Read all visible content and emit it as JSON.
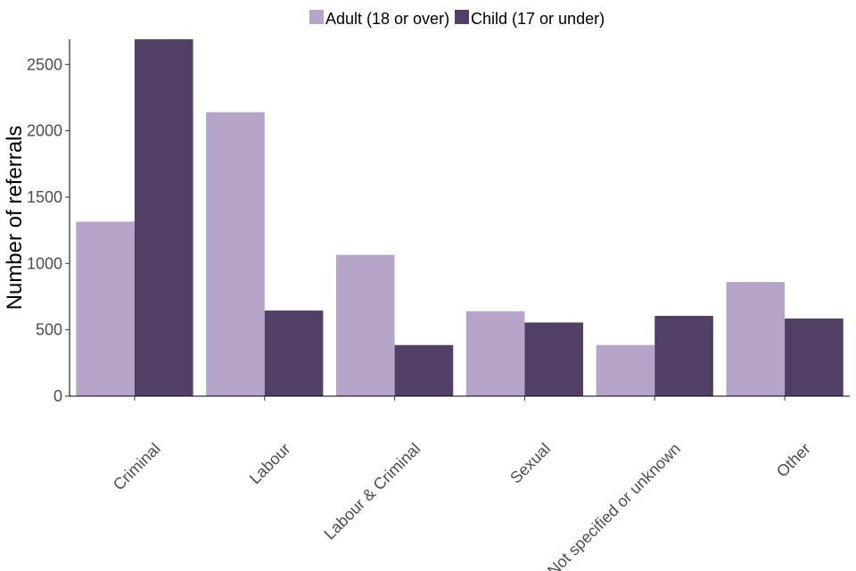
{
  "chart_data": {
    "type": "bar",
    "title": "",
    "xlabel": "",
    "ylabel": "Number of referrals",
    "ylim": [
      0,
      2690
    ],
    "yticks": [
      0,
      500,
      1000,
      1500,
      2000,
      2500
    ],
    "categories": [
      "Criminal",
      "Labour",
      "Labour & Criminal",
      "Sexual",
      "Not specified or unknown",
      "Other"
    ],
    "series": [
      {
        "name": "Adult (18 or over)",
        "color": "#b6a4c9",
        "values": [
          1315,
          2140,
          1065,
          640,
          385,
          860
        ]
      },
      {
        "name": "Child (17 or under)",
        "color": "#513f66",
        "values": [
          2690,
          645,
          385,
          555,
          605,
          585
        ]
      }
    ],
    "legend_position": "top",
    "grid": false
  }
}
